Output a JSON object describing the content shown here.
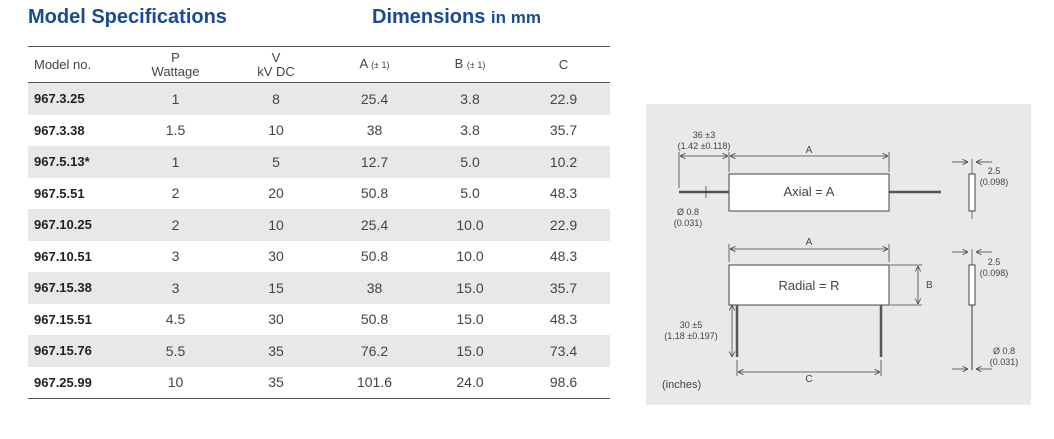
{
  "headings": {
    "model_specs": "Model Specifications",
    "dimensions": "Dimensions",
    "dimensions_unit": "in mm"
  },
  "table": {
    "headers": {
      "model": "Model no.",
      "p_top": "P",
      "p_bottom": "Wattage",
      "v_top": "V",
      "v_bottom": "kV DC",
      "a": "A",
      "a_tol": "(± 1)",
      "b": "B",
      "b_tol": "(± 1)",
      "c": "C"
    },
    "rows": [
      {
        "model": "967.3.25",
        "p": "1",
        "v": "8",
        "a": "25.4",
        "b": "3.8",
        "c": "22.9"
      },
      {
        "model": "967.3.38",
        "p": "1.5",
        "v": "10",
        "a": "38",
        "b": "3.8",
        "c": "35.7"
      },
      {
        "model": "967.5.13*",
        "p": "1",
        "v": "5",
        "a": "12.7",
        "b": "5.0",
        "c": "10.2"
      },
      {
        "model": "967.5.51",
        "p": "2",
        "v": "20",
        "a": "50.8",
        "b": "5.0",
        "c": "48.3"
      },
      {
        "model": "967.10.25",
        "p": "2",
        "v": "10",
        "a": "25.4",
        "b": "10.0",
        "c": "22.9"
      },
      {
        "model": "967.10.51",
        "p": "3",
        "v": "30",
        "a": "50.8",
        "b": "10.0",
        "c": "48.3"
      },
      {
        "model": "967.15.38",
        "p": "3",
        "v": "15",
        "a": "38",
        "b": "15.0",
        "c": "35.7"
      },
      {
        "model": "967.15.51",
        "p": "4.5",
        "v": "30",
        "a": "50.8",
        "b": "15.0",
        "c": "48.3"
      },
      {
        "model": "967.15.76",
        "p": "5.5",
        "v": "35",
        "a": "76.2",
        "b": "15.0",
        "c": "73.4"
      },
      {
        "model": "967.25.99",
        "p": "10",
        "v": "35",
        "a": "101.6",
        "b": "24.0",
        "c": "98.6"
      }
    ]
  },
  "diagram": {
    "axial_lead_len": "36 ±3",
    "axial_lead_len_in": "(1.42 ±0.118)",
    "axial_label": "Axial = A",
    "axial_dim_a": "A",
    "axial_lead_dia": "Ø 0.8",
    "axial_lead_dia_in": "(0.031)",
    "axial_thickness": "2.5",
    "axial_thickness_in": "(0.098)",
    "radial_label": "Radial = R",
    "radial_dim_a": "A",
    "radial_dim_b": "B",
    "radial_dim_c": "C",
    "radial_lead_len": "30 ±5",
    "radial_lead_len_in": "(1.18 ±0.197)",
    "radial_thickness": "2.5",
    "radial_thickness_in": "(0.098)",
    "radial_lead_dia": "Ø 0.8",
    "radial_lead_dia_in": "(0.031)",
    "units_note": "(inches)"
  }
}
